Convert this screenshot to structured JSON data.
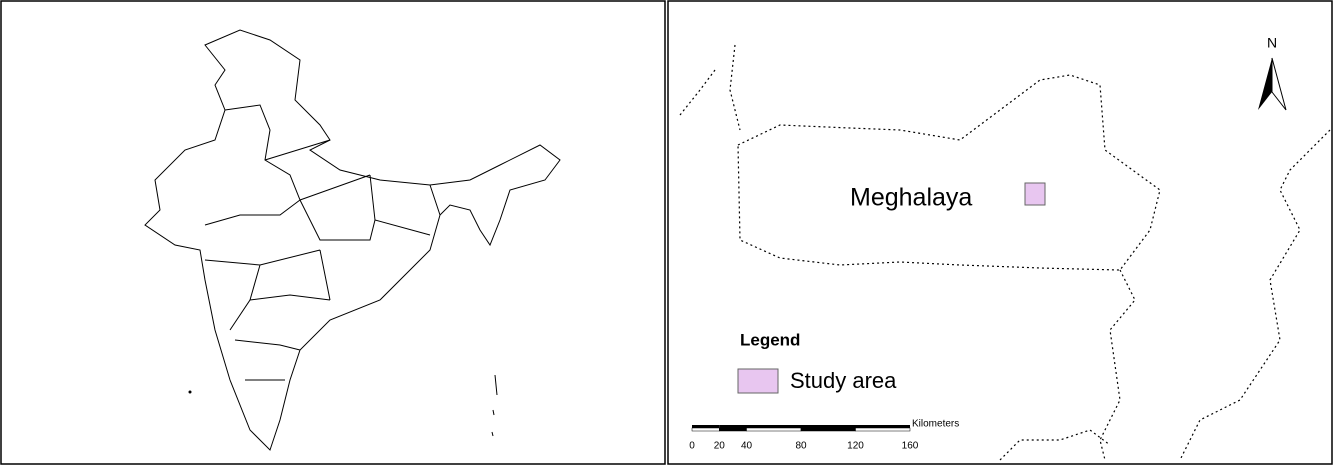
{
  "map": {
    "place_label": "Meghalaya",
    "legend": {
      "title": "Legend",
      "items": [
        {
          "label": "Study area",
          "color": "#e8c6f0"
        }
      ]
    },
    "north_label": "N",
    "scale_bar": {
      "unit": "Kilometers",
      "ticks": [
        0,
        20,
        40,
        80,
        120,
        160
      ]
    }
  }
}
